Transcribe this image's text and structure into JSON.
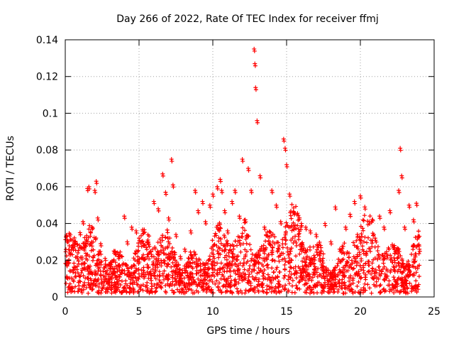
{
  "chart_data": {
    "type": "scatter",
    "title": "Day 266 of 2022, Rate Of TEC Index for receiver ffmj",
    "xlabel": "GPS time / hours",
    "ylabel": "ROTI / TECUs",
    "xlim": [
      0,
      25
    ],
    "ylim": [
      0,
      0.14
    ],
    "xticks": [
      0,
      5,
      10,
      15,
      20,
      25
    ],
    "xtick_labels": [
      "0",
      "5",
      "10",
      "15",
      "20",
      "25"
    ],
    "yticks": [
      0,
      0.02,
      0.04,
      0.06,
      0.08,
      0.1,
      0.12,
      0.14
    ],
    "ytick_labels": [
      "0",
      "0.02",
      "0.04",
      "0.06",
      "0.08",
      "0.1",
      "0.12",
      "0.14"
    ],
    "grid": true,
    "marker": "plus",
    "color": "#ff0000",
    "series": [
      {
        "name": "ROTI",
        "x": [
          0.1,
          0.3,
          0.5,
          0.8,
          1.0,
          1.2,
          1.4,
          1.5,
          1.6,
          1.8,
          2.0,
          2.1,
          2.2,
          2.4,
          2.7,
          3.0,
          3.3,
          3.6,
          4.0,
          4.2,
          4.5,
          4.8,
          5.0,
          5.3,
          5.6,
          6.0,
          6.3,
          6.6,
          6.8,
          7.0,
          7.2,
          7.3,
          7.5,
          7.8,
          8.1,
          8.5,
          8.8,
          9.0,
          9.3,
          9.5,
          9.8,
          10.0,
          10.3,
          10.5,
          10.6,
          10.8,
          11.0,
          11.3,
          11.5,
          11.8,
          12.0,
          12.2,
          12.4,
          12.6,
          12.8,
          12.85,
          12.9,
          13.0,
          13.2,
          13.5,
          13.8,
          14.0,
          14.3,
          14.6,
          14.8,
          14.9,
          15.0,
          15.2,
          15.5,
          15.8,
          16.0,
          16.3,
          16.6,
          17.0,
          17.3,
          17.6,
          18.0,
          18.3,
          18.6,
          19.0,
          19.3,
          19.6,
          19.8,
          20.0,
          20.3,
          20.6,
          21.0,
          21.3,
          21.6,
          22.0,
          22.3,
          22.6,
          22.7,
          22.8,
          23.0,
          23.3,
          23.6,
          23.8,
          24.0
        ],
        "y": [
          0.018,
          0.024,
          0.028,
          0.022,
          0.035,
          0.041,
          0.03,
          0.059,
          0.06,
          0.038,
          0.058,
          0.063,
          0.043,
          0.029,
          0.021,
          0.018,
          0.025,
          0.022,
          0.044,
          0.03,
          0.038,
          0.036,
          0.032,
          0.029,
          0.031,
          0.052,
          0.048,
          0.067,
          0.057,
          0.043,
          0.075,
          0.061,
          0.034,
          0.022,
          0.026,
          0.036,
          0.058,
          0.047,
          0.052,
          0.041,
          0.05,
          0.056,
          0.06,
          0.064,
          0.058,
          0.047,
          0.036,
          0.052,
          0.058,
          0.044,
          0.075,
          0.042,
          0.07,
          0.058,
          0.135,
          0.127,
          0.114,
          0.096,
          0.066,
          0.038,
          0.03,
          0.058,
          0.05,
          0.041,
          0.086,
          0.081,
          0.072,
          0.056,
          0.046,
          0.034,
          0.04,
          0.038,
          0.036,
          0.034,
          0.028,
          0.04,
          0.03,
          0.049,
          0.026,
          0.038,
          0.045,
          0.052,
          0.034,
          0.055,
          0.049,
          0.041,
          0.032,
          0.044,
          0.038,
          0.047,
          0.028,
          0.058,
          0.081,
          0.066,
          0.038,
          0.05,
          0.042,
          0.051,
          0.026
        ]
      }
    ]
  }
}
